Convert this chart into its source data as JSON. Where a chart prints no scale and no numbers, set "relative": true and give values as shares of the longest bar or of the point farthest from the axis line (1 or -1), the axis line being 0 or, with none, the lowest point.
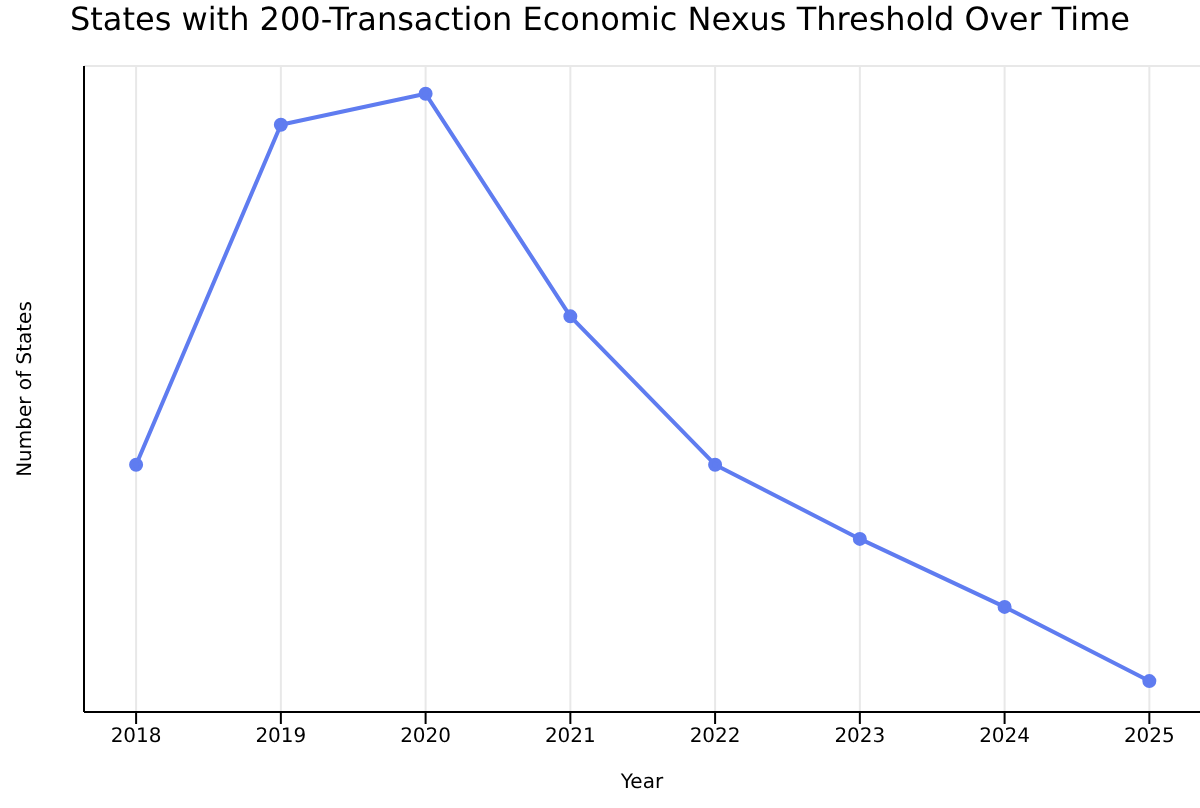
{
  "chart_data": {
    "type": "line",
    "title": "States with 200-Transaction Economic Nexus Threshold Over Time",
    "xlabel": "Year",
    "ylabel": "Number of States",
    "relative": true,
    "x": [
      2018,
      2019,
      2020,
      2021,
      2022,
      2023,
      2024,
      2025
    ],
    "series": [
      {
        "color": "#5f7cf0",
        "values": [
          0.4,
          0.95,
          1,
          0.64,
          0.4,
          0.28,
          0.17,
          0.05
        ]
      }
    ],
    "xlim": [
      2017.64,
      2025.35
    ],
    "xticks": [
      2018,
      2019,
      2020,
      2021,
      2022,
      2023,
      2024,
      2025
    ],
    "grid": true,
    "marker": "circle",
    "line_style": "solid",
    "legend": false
  }
}
